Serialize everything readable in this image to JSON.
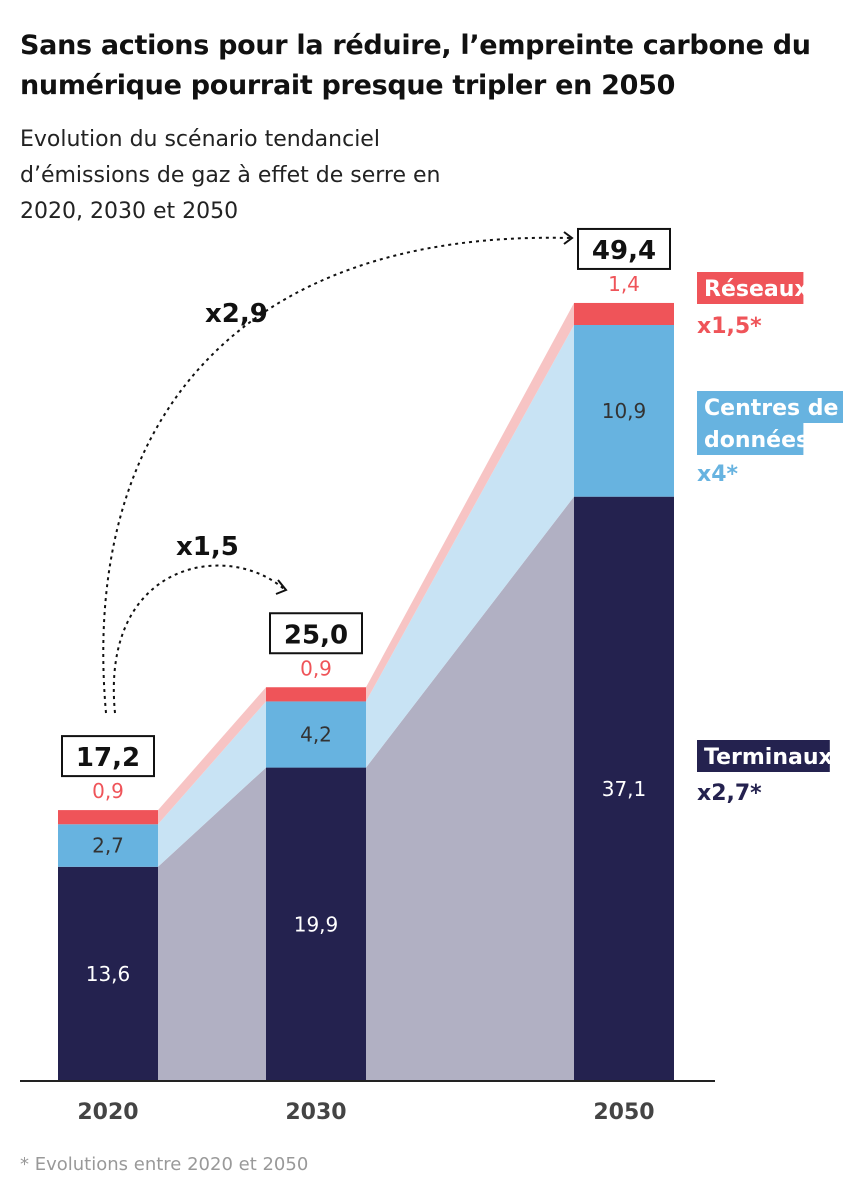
{
  "title": "Sans actions pour la réduire, l’empreinte carbone du numérique pourrait presque tripler en 2050",
  "subtitle": "Evolution du scénario tendanciel d’émissions de gaz à effet de serre en 2020, 2030 et 2050",
  "footnote": "* Evolutions entre 2020 et 2050",
  "chart_data": {
    "type": "bar",
    "stacked": true,
    "categories": [
      "2020",
      "2030",
      "2050"
    ],
    "series": [
      {
        "name": "Terminaux",
        "values": [
          13.6,
          19.9,
          37.1
        ],
        "labels": [
          "13,6",
          "19,9",
          "37,1"
        ],
        "color": "#24224f",
        "area_color": "#b1b0c3",
        "multiplier": "x2,7*",
        "label_color": "#ffffff"
      },
      {
        "name": "Centres de données",
        "values": [
          2.7,
          4.2,
          10.9
        ],
        "labels": [
          "2,7",
          "4,2",
          "10,9"
        ],
        "color": "#67b3e0",
        "area_color": "#c8e3f4",
        "multiplier": "x4*",
        "label_color": "#333333"
      },
      {
        "name": "Réseaux",
        "values": [
          0.9,
          0.9,
          1.4
        ],
        "labels": [
          "0,9",
          "0,9",
          "1,4"
        ],
        "color": "#ef5459",
        "area_color": "#f7c4c4",
        "multiplier": "x1,5*",
        "label_color": "#ef5459"
      }
    ],
    "totals": [
      "17,2",
      "25,0",
      "49,4"
    ],
    "annotations": [
      {
        "text": "x1,5",
        "from": "2020",
        "to": "2030"
      },
      {
        "text": "x2,9",
        "from": "2020",
        "to": "2050"
      }
    ],
    "legend_placement": "right",
    "grid": false,
    "ylim": [
      0,
      50
    ]
  }
}
